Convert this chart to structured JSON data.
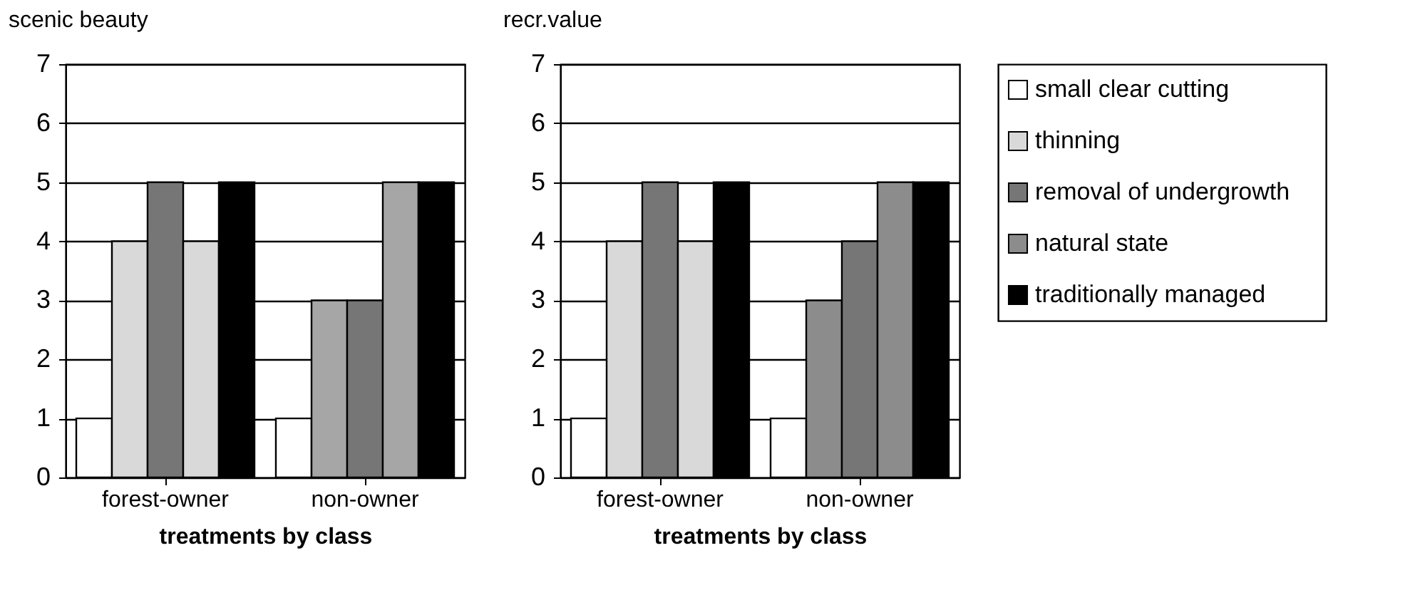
{
  "chart_data": [
    {
      "type": "bar",
      "title": "scenic beauty",
      "xlabel": "treatments by class",
      "categories": [
        "forest-owner",
        "non-owner"
      ],
      "ylim": [
        0,
        7
      ],
      "yticks": [
        0,
        1,
        2,
        3,
        4,
        5,
        6,
        7
      ],
      "grid": "y",
      "legend": false,
      "series": [
        {
          "color": "#ffffff",
          "values": [
            1,
            1
          ]
        },
        {
          "colors": [
            "#d9d9d9",
            "#a6a6a6"
          ],
          "values": [
            4,
            3
          ]
        },
        {
          "color": "#767676",
          "values": [
            5,
            3
          ]
        },
        {
          "colors": [
            "#d9d9d9",
            "#a6a6a6"
          ],
          "values": [
            4,
            5
          ]
        },
        {
          "color": "#000000",
          "values": [
            5,
            5
          ]
        }
      ]
    },
    {
      "type": "bar",
      "title": "recr.value",
      "xlabel": "treatments by class",
      "categories": [
        "forest-owner",
        "non-owner"
      ],
      "ylim": [
        0,
        7
      ],
      "yticks": [
        0,
        1,
        2,
        3,
        4,
        5,
        6,
        7
      ],
      "grid": "y",
      "legend": "right",
      "series": [
        {
          "name": "small clear cutting",
          "color": "#ffffff",
          "values": [
            1,
            1
          ]
        },
        {
          "name": "thinning",
          "color": "#d9d9d9",
          "colors": [
            "#d9d9d9",
            "#8c8c8c"
          ],
          "values": [
            4,
            3
          ]
        },
        {
          "name": "removal of undergrowth",
          "color": "#767676",
          "values": [
            5,
            4
          ]
        },
        {
          "name": "natural state",
          "color": "#8c8c8c",
          "colors": [
            "#d9d9d9",
            "#8c8c8c"
          ],
          "values": [
            4,
            5
          ]
        },
        {
          "name": "traditionally managed",
          "color": "#000000",
          "values": [
            5,
            5
          ]
        }
      ]
    }
  ]
}
